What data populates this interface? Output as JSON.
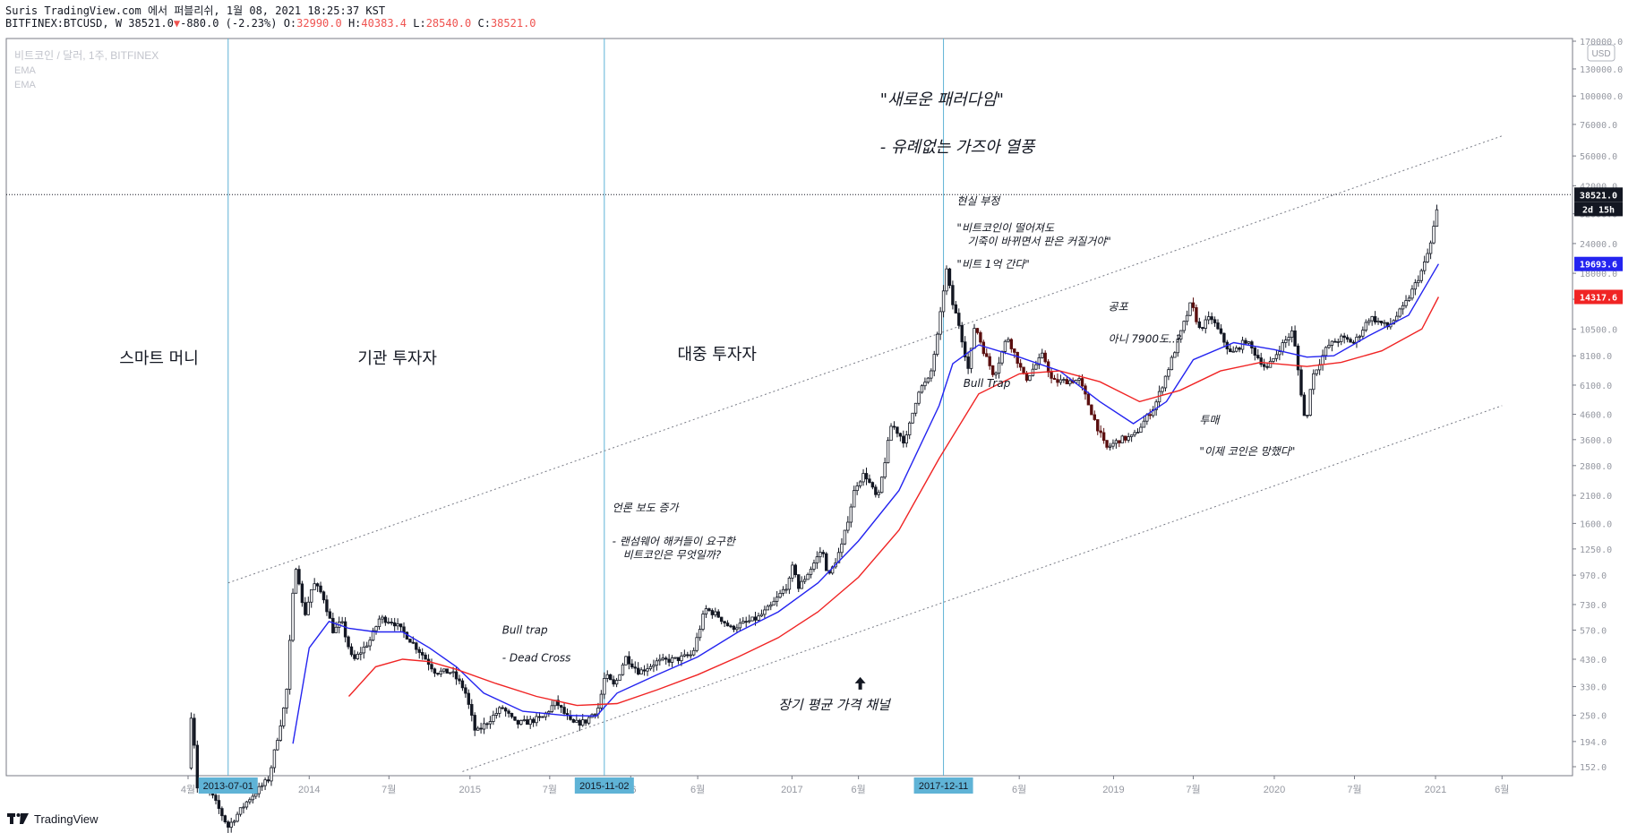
{
  "header": {
    "line1": "Suris TradingView.com 에서 퍼블리쉬, 1월 08, 2021 18:25:37 KST",
    "symbol": "BITFINEX:BTCUSD, W",
    "last": "38521.0",
    "change": "-880.0 (-2.23%)",
    "ohlc": {
      "O": "32990.0",
      "H": "40383.4",
      "L": "28540.0",
      "C": "38521.0"
    }
  },
  "legend": {
    "title": "비트코인 / 달러, 1주, BITFINEX",
    "ema1": "EMA",
    "ema2": "EMA"
  },
  "footer": {
    "brand": "TradingView"
  },
  "colors": {
    "bull": "#131722",
    "bear": "#5b0f0f",
    "ema_fast": "#2424f0",
    "ema_slow": "#f02424",
    "vline": "#5fb3d6",
    "date_badge": "#5fb3d6"
  },
  "chart_data": {
    "type": "candlestick",
    "scale": "log",
    "currency": "USD",
    "y_ticks": [
      "170000.0",
      "130000.0",
      "100000.0",
      "76000.0",
      "56000.0",
      "42000.0",
      "32000.0",
      "24000.0",
      "18000.0",
      "14000.0",
      "10500.0",
      "8100.0",
      "6100.0",
      "4600.0",
      "3600.0",
      "2800.0",
      "2100.0",
      "1600.0",
      "1250.0",
      "970.0",
      "730.0",
      "570.0",
      "430.0",
      "330.0",
      "250.0",
      "194.0",
      "152.0"
    ],
    "x_ticks": [
      {
        "label": "4월",
        "date": "2013-04"
      },
      {
        "label": "2014",
        "date": "2014-01"
      },
      {
        "label": "7월",
        "date": "2014-07"
      },
      {
        "label": "2015",
        "date": "2015-01"
      },
      {
        "label": "7월",
        "date": "2015-07"
      },
      {
        "label": "16",
        "date": "2016-01"
      },
      {
        "label": "6월",
        "date": "2016-06"
      },
      {
        "label": "2017",
        "date": "2017-01"
      },
      {
        "label": "6월",
        "date": "2017-06"
      },
      {
        "label": "6월",
        "date": "2018-06"
      },
      {
        "label": "2019",
        "date": "2019-01"
      },
      {
        "label": "7월",
        "date": "2019-07"
      },
      {
        "label": "2020",
        "date": "2020-01"
      },
      {
        "label": "7월",
        "date": "2020-07"
      },
      {
        "label": "2021",
        "date": "2021-01"
      },
      {
        "label": "6월",
        "date": "2021-06"
      }
    ],
    "price_badges": [
      {
        "label": "38521.0",
        "value": 38521,
        "color": "#131722"
      },
      {
        "label": "2d 15h",
        "value": 33500,
        "color": "#131722"
      },
      {
        "label": "19693.6",
        "value": 19693.6,
        "color": "#2424f0"
      },
      {
        "label": "14317.6",
        "value": 14317.6,
        "color": "#f02424"
      }
    ],
    "vlines": [
      {
        "date": "2013-07-01",
        "label": "2013-07-01"
      },
      {
        "date": "2015-11-02",
        "label": "2015-11-02"
      },
      {
        "date": "2017-12-11",
        "label": "2017-12-11"
      }
    ],
    "hline": {
      "value": 38521
    },
    "channel": {
      "upper": [
        {
          "date": "2013-07-01",
          "price": 900
        },
        {
          "date": "2021-06-01",
          "price": 68000
        }
      ],
      "lower": [
        {
          "date": "2014-12-15",
          "price": 145
        },
        {
          "date": "2021-06-01",
          "price": 5000
        }
      ]
    },
    "price_path": [
      [
        "2013-04-01",
        150
      ],
      [
        "2013-04-10",
        290
      ],
      [
        "2013-04-20",
        125
      ],
      [
        "2013-05-15",
        125
      ],
      [
        "2013-07-01",
        85
      ],
      [
        "2013-08-15",
        110
      ],
      [
        "2013-10-01",
        135
      ],
      [
        "2013-11-10",
        300
      ],
      [
        "2013-11-30",
        1100
      ],
      [
        "2013-12-10",
        900
      ],
      [
        "2013-12-20",
        640
      ],
      [
        "2014-01-10",
        900
      ],
      [
        "2014-02-01",
        800
      ],
      [
        "2014-02-25",
        560
      ],
      [
        "2014-03-15",
        620
      ],
      [
        "2014-04-10",
        420
      ],
      [
        "2014-05-20",
        520
      ],
      [
        "2014-06-10",
        640
      ],
      [
        "2014-07-10",
        620
      ],
      [
        "2014-08-10",
        540
      ],
      [
        "2014-09-15",
        450
      ],
      [
        "2014-10-15",
        380
      ],
      [
        "2014-11-20",
        380
      ],
      [
        "2014-12-20",
        320
      ],
      [
        "2015-01-14",
        210
      ],
      [
        "2015-02-15",
        240
      ],
      [
        "2015-03-15",
        270
      ],
      [
        "2015-04-15",
        230
      ],
      [
        "2015-05-15",
        235
      ],
      [
        "2015-06-15",
        245
      ],
      [
        "2015-07-15",
        285
      ],
      [
        "2015-08-20",
        230
      ],
      [
        "2015-09-20",
        235
      ],
      [
        "2015-10-20",
        270
      ],
      [
        "2015-11-04",
        370
      ],
      [
        "2015-11-25",
        330
      ],
      [
        "2015-12-20",
        440
      ],
      [
        "2016-01-20",
        380
      ],
      [
        "2016-03-01",
        420
      ],
      [
        "2016-04-15",
        430
      ],
      [
        "2016-05-20",
        450
      ],
      [
        "2016-06-18",
        700
      ],
      [
        "2016-07-15",
        660
      ],
      [
        "2016-08-15",
        580
      ],
      [
        "2016-09-15",
        610
      ],
      [
        "2016-10-15",
        640
      ],
      [
        "2016-11-15",
        720
      ],
      [
        "2016-12-25",
        900
      ],
      [
        "2017-01-05",
        1100
      ],
      [
        "2017-01-15",
        850
      ],
      [
        "2017-02-15",
        1050
      ],
      [
        "2017-03-10",
        1250
      ],
      [
        "2017-03-25",
        950
      ],
      [
        "2017-04-25",
        1300
      ],
      [
        "2017-05-25",
        2300
      ],
      [
        "2017-06-15",
        2600
      ],
      [
        "2017-07-15",
        2000
      ],
      [
        "2017-08-15",
        4200
      ],
      [
        "2017-09-15",
        3500
      ],
      [
        "2017-10-15",
        5800
      ],
      [
        "2017-11-10",
        6500
      ],
      [
        "2017-11-30",
        10500
      ],
      [
        "2017-12-17",
        19000
      ],
      [
        "2017-12-31",
        13500
      ],
      [
        "2018-01-15",
        11000
      ],
      [
        "2018-02-06",
        7000
      ],
      [
        "2018-02-20",
        11000
      ],
      [
        "2018-03-15",
        8200
      ],
      [
        "2018-04-05",
        6700
      ],
      [
        "2018-05-05",
        9800
      ],
      [
        "2018-06-15",
        6400
      ],
      [
        "2018-07-25",
        8200
      ],
      [
        "2018-08-15",
        6300
      ],
      [
        "2018-10-15",
        6400
      ],
      [
        "2018-11-20",
        4300
      ],
      [
        "2018-12-15",
        3300
      ],
      [
        "2019-01-15",
        3600
      ],
      [
        "2019-02-15",
        3700
      ],
      [
        "2019-04-05",
        5000
      ],
      [
        "2019-05-15",
        8000
      ],
      [
        "2019-06-26",
        13500
      ],
      [
        "2019-07-15",
        10500
      ],
      [
        "2019-08-10",
        11800
      ],
      [
        "2019-09-25",
        8200
      ],
      [
        "2019-10-28",
        9400
      ],
      [
        "2019-12-15",
        7100
      ],
      [
        "2020-01-15",
        8800
      ],
      [
        "2020-02-12",
        10300
      ],
      [
        "2020-03-13",
        4000
      ],
      [
        "2020-03-25",
        6500
      ],
      [
        "2020-05-01",
        8900
      ],
      [
        "2020-06-01",
        9600
      ],
      [
        "2020-07-01",
        9200
      ],
      [
        "2020-08-05",
        11800
      ],
      [
        "2020-09-15",
        10700
      ],
      [
        "2020-10-21",
        13000
      ],
      [
        "2020-11-15",
        16000
      ],
      [
        "2020-12-05",
        19200
      ],
      [
        "2020-12-20",
        23500
      ],
      [
        "2021-01-05",
        33500
      ],
      [
        "2021-01-08",
        38521
      ]
    ],
    "ema_fast": [
      [
        "2013-11-25",
        190
      ],
      [
        "2014-01-01",
        480
      ],
      [
        "2014-02-15",
        620
      ],
      [
        "2014-04-01",
        580
      ],
      [
        "2014-06-01",
        560
      ],
      [
        "2014-08-01",
        560
      ],
      [
        "2014-10-01",
        480
      ],
      [
        "2014-12-01",
        400
      ],
      [
        "2015-02-01",
        310
      ],
      [
        "2015-05-01",
        260
      ],
      [
        "2015-08-01",
        250
      ],
      [
        "2015-10-15",
        248
      ],
      [
        "2015-12-01",
        310
      ],
      [
        "2016-03-01",
        370
      ],
      [
        "2016-06-01",
        440
      ],
      [
        "2016-09-01",
        560
      ],
      [
        "2016-12-01",
        680
      ],
      [
        "2017-03-01",
        900
      ],
      [
        "2017-06-01",
        1350
      ],
      [
        "2017-09-01",
        2200
      ],
      [
        "2017-12-01",
        5000
      ],
      [
        "2018-01-01",
        7500
      ],
      [
        "2018-03-01",
        9000
      ],
      [
        "2018-06-01",
        8000
      ],
      [
        "2018-09-01",
        7000
      ],
      [
        "2018-12-01",
        5200
      ],
      [
        "2019-02-15",
        4200
      ],
      [
        "2019-05-01",
        5200
      ],
      [
        "2019-07-01",
        7800
      ],
      [
        "2019-10-01",
        9200
      ],
      [
        "2020-01-01",
        8600
      ],
      [
        "2020-03-15",
        8000
      ],
      [
        "2020-05-15",
        8100
      ],
      [
        "2020-08-01",
        9800
      ],
      [
        "2020-11-01",
        12000
      ],
      [
        "2021-01-08",
        19693.6
      ]
    ],
    "ema_slow": [
      [
        "2014-04-01",
        300
      ],
      [
        "2014-06-01",
        400
      ],
      [
        "2014-08-01",
        430
      ],
      [
        "2014-10-01",
        420
      ],
      [
        "2014-12-01",
        390
      ],
      [
        "2015-03-01",
        340
      ],
      [
        "2015-06-01",
        300
      ],
      [
        "2015-09-01",
        275
      ],
      [
        "2015-12-01",
        280
      ],
      [
        "2016-03-01",
        320
      ],
      [
        "2016-06-01",
        370
      ],
      [
        "2016-09-01",
        440
      ],
      [
        "2016-12-01",
        530
      ],
      [
        "2017-03-01",
        680
      ],
      [
        "2017-06-01",
        950
      ],
      [
        "2017-09-01",
        1500
      ],
      [
        "2017-12-01",
        3000
      ],
      [
        "2018-03-01",
        5600
      ],
      [
        "2018-06-01",
        6800
      ],
      [
        "2018-09-01",
        7000
      ],
      [
        "2018-12-01",
        6300
      ],
      [
        "2019-03-01",
        5200
      ],
      [
        "2019-06-01",
        5800
      ],
      [
        "2019-09-01",
        7000
      ],
      [
        "2019-12-01",
        7600
      ],
      [
        "2020-03-15",
        7300
      ],
      [
        "2020-06-01",
        7600
      ],
      [
        "2020-09-01",
        8500
      ],
      [
        "2020-12-01",
        10500
      ],
      [
        "2021-01-08",
        14317.6
      ]
    ],
    "phases": [
      {
        "label": "스마트 머니",
        "date": "2013-01-25",
        "price": 7500
      },
      {
        "label": "기관 투자자",
        "date": "2014-07-20",
        "price": 7500
      },
      {
        "label": "대중 투자자",
        "date": "2016-07-15",
        "price": 7800
      }
    ],
    "annotations": [
      {
        "lines": [
          "\"새로운 패러다임\""
        ],
        "date": "2017-07-20",
        "price": 92000
      },
      {
        "lines": [
          "- 유례없는 가즈아 열풍"
        ],
        "date": "2017-07-20",
        "price": 58000
      },
      {
        "lines": [
          "현실 부정"
        ],
        "date": "2018-01-10",
        "price": 35000
      },
      {
        "lines": [
          "\"비트코인이 떨어져도",
          "기죽이 바뀌면서 판은 커질거야\""
        ],
        "date": "2018-01-10",
        "price": 27000
      },
      {
        "lines": [
          "\"비트 1억 간다\""
        ],
        "date": "2018-01-10",
        "price": 19000
      },
      {
        "lines": [
          "Bull Trap"
        ],
        "date": "2018-01-25",
        "price": 6000
      },
      {
        "lines": [
          "공포"
        ],
        "date": "2018-12-20",
        "price": 12600
      },
      {
        "lines": [
          "아니 7900도..?"
        ],
        "date": "2018-12-20",
        "price": 9200
      },
      {
        "lines": [
          "투매"
        ],
        "date": "2019-07-15",
        "price": 4200
      },
      {
        "lines": [
          "\"이제 코인은 망했다\""
        ],
        "date": "2019-07-15",
        "price": 3100
      },
      {
        "lines": [
          "언론 보도 증가"
        ],
        "date": "2015-11-20",
        "price": 1800
      },
      {
        "lines": [
          "- 랜섬웨어 해커들이 요구한",
          "비트코인은 무엇일까?"
        ],
        "date": "2015-11-20",
        "price": 1300
      },
      {
        "lines": [
          "Bull trap"
        ],
        "date": "2015-03-15",
        "price": 550
      },
      {
        "lines": [
          "- Dead Cross"
        ],
        "date": "2015-03-15",
        "price": 420
      },
      {
        "lines": [
          "장기 평균 가격 채널"
        ],
        "date": "2016-12-01",
        "price": 265
      }
    ],
    "arrow": {
      "date": "2017-06-05",
      "price": 335
    }
  }
}
